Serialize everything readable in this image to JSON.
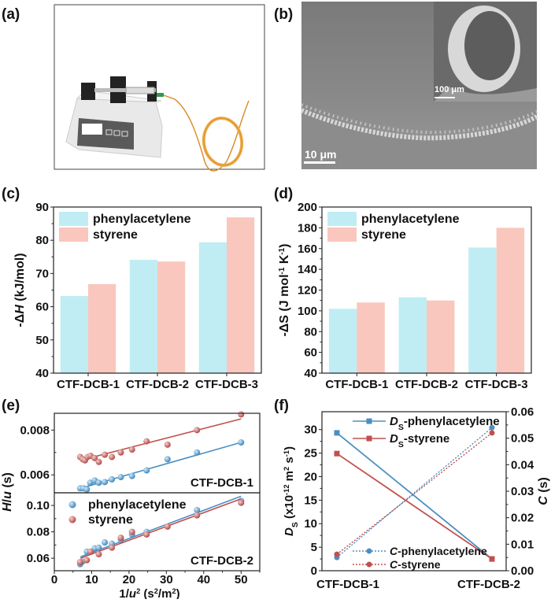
{
  "panels": {
    "a": {
      "label": "(a)"
    },
    "b": {
      "label": "(b)",
      "scale_main": "10 μm",
      "scale_inset": "100 μm"
    },
    "c": {
      "label": "(c)"
    },
    "d": {
      "label": "(d)"
    },
    "e": {
      "label": "(e)"
    },
    "f": {
      "label": "(f)"
    }
  },
  "colors": {
    "phenylacetylene_bar": "#bfedf3",
    "styrene_bar": "#f9c7bd",
    "phenylacetylene": "#4a8fc2",
    "styrene": "#c0504d"
  },
  "chart_data": [
    {
      "panel": "c",
      "type": "bar",
      "categories": [
        "CTF-DCB-1",
        "CTF-DCB-2",
        "CTF-DCB-3"
      ],
      "series": [
        {
          "name": "phenylacetylene",
          "values": [
            63.2,
            74.1,
            79.4
          ]
        },
        {
          "name": "styrene",
          "values": [
            66.8,
            73.6,
            86.9
          ]
        }
      ],
      "ylabel": [
        {
          "t": "-Δ"
        },
        {
          "t": "H",
          "i": true
        },
        {
          "t": " (kJ/mol)"
        }
      ],
      "ylim": [
        40,
        90
      ],
      "yticks": [
        40,
        50,
        60,
        70,
        80,
        90
      ],
      "legend": "top-left",
      "grid": false
    },
    {
      "panel": "d",
      "type": "bar",
      "categories": [
        "CTF-DCB-1",
        "CTF-DCB-2",
        "CTF-DCB-3"
      ],
      "series": [
        {
          "name": "phenylacetylene",
          "values": [
            102,
            113,
            161
          ]
        },
        {
          "name": "styrene",
          "values": [
            108,
            110,
            180
          ]
        }
      ],
      "ylabel": [
        {
          "t": "-ΔS (J mol"
        },
        {
          "t": "-1",
          "sup": true
        },
        {
          "t": " K"
        },
        {
          "t": "-1",
          "sup": true
        },
        {
          "t": ")"
        }
      ],
      "ylim": [
        40,
        200
      ],
      "yticks": [
        40,
        60,
        80,
        100,
        120,
        140,
        160,
        180,
        200
      ],
      "legend": "top-left",
      "grid": false
    },
    {
      "panel": "e",
      "type": "scatter",
      "xlabel": [
        {
          "t": "1/"
        },
        {
          "t": "u",
          "i": true
        },
        {
          "t": "2",
          "sup": true
        },
        {
          "t": "  (s"
        },
        {
          "t": "2",
          "sup": true
        },
        {
          "t": "/m"
        },
        {
          "t": "2",
          "sup": true
        },
        {
          "t": ")"
        }
      ],
      "ylabel": [
        {
          "t": "H",
          "i": true
        },
        {
          "t": "/"
        },
        {
          "t": "u",
          "i": true
        },
        {
          "t": " (s)"
        }
      ],
      "xlim": [
        0,
        55
      ],
      "xticks": [
        0,
        10,
        20,
        30,
        40,
        50
      ],
      "legend": "inside bottom subplot, top-left",
      "subplots": [
        {
          "title": "CTF-DCB-1",
          "ylim": [
            0.0052,
            0.00875
          ],
          "yticks": [
            "0.006",
            "0.008"
          ],
          "series": [
            {
              "name": "phenylacetylene",
              "x": [
                6.9,
                7.8,
                8.7,
                9.6,
                10.8,
                11.9,
                13.5,
                15.4,
                17.8,
                20.8,
                24.7,
                30.3,
                38.2,
                50
              ],
              "y": [
                0.0054,
                0.0054,
                0.00535,
                0.00565,
                0.00575,
                0.00565,
                0.00568,
                0.0058,
                0.0059,
                0.00595,
                0.0062,
                0.0067,
                0.007,
                0.00745
              ],
              "fit": [
                [
                  7,
                  0.0054
                ],
                [
                  50,
                  0.00745
                ]
              ]
            },
            {
              "name": "styrene",
              "x": [
                6.9,
                7.6,
                8.2,
                8.9,
                9.7,
                10.8,
                11.9,
                13.5,
                15.4,
                17.8,
                20.8,
                24.7,
                30.3,
                38.2,
                50
              ],
              "y": [
                0.0068,
                0.0067,
                0.00665,
                0.0068,
                0.00685,
                0.00675,
                0.00658,
                0.0069,
                0.0068,
                0.007,
                0.00713,
                0.0075,
                0.00735,
                0.008,
                0.0087
              ],
              "fit": [
                [
                  7,
                  0.00665
                ],
                [
                  50,
                  0.0085
                ]
              ]
            }
          ]
        },
        {
          "title": "CTF-DCB-2",
          "ylim": [
            0.0505,
            0.1096
          ],
          "yticks": [
            "0.06",
            "0.08",
            "0.10"
          ],
          "series": [
            {
              "name": "phenylacetylene",
              "x": [
                6.9,
                7.5,
                8.7,
                10.8,
                11.9,
                13.5,
                15.4,
                17.8,
                20.8,
                24.7,
                38.2,
                50
              ],
              "y": [
                0.0555,
                0.0575,
                0.065,
                0.0675,
                0.068,
                0.072,
                0.071,
                0.074,
                0.078,
                0.08,
                0.0965,
                0.1035
              ],
              "fit": [
                [
                  7,
                  0.061
                ],
                [
                  50,
                  0.107
                ]
              ]
            },
            {
              "name": "styrene",
              "x": [
                6.9,
                8.7,
                9.7,
                11.9,
                15.4,
                17.8,
                20.8,
                24.7,
                30.3,
                38.2,
                50
              ],
              "y": [
                0.057,
                0.0585,
                0.065,
                0.063,
                0.068,
                0.0755,
                0.08,
                0.078,
                0.084,
                0.0925,
                0.102
              ],
              "fit": [
                [
                  7,
                  0.06
                ],
                [
                  50,
                  0.105
                ]
              ]
            }
          ]
        }
      ]
    },
    {
      "panel": "f",
      "type": "line",
      "categories": [
        "CTF-DCB-1",
        "CTF-DCB-2"
      ],
      "ylabel": [
        {
          "t": "D",
          "i": true
        },
        {
          "t": "S",
          "sub": true
        },
        {
          "t": " (x10"
        },
        {
          "t": "-12",
          "sup": true
        },
        {
          "t": " m"
        },
        {
          "t": "2",
          "sup": true
        },
        {
          "t": " s"
        },
        {
          "t": "-1",
          "sup": true
        },
        {
          "t": ")"
        }
      ],
      "y2label": [
        {
          "t": "C",
          "i": true
        },
        {
          "t": " (s)"
        }
      ],
      "ylim": [
        0,
        33.8
      ],
      "yticks": [
        0,
        5,
        10,
        15,
        20,
        25,
        30
      ],
      "y2lim": [
        0,
        0.06
      ],
      "y2ticks": [
        "0.00",
        "0.01",
        "0.02",
        "0.03",
        "0.04",
        "0.05",
        "0.06"
      ],
      "series": [
        {
          "name": [
            {
              "t": "D",
              "i": true
            },
            {
              "t": "S",
              "sub": true
            },
            {
              "t": "-phenylacetylene"
            }
          ],
          "axis": "left",
          "style": "solid-square",
          "color": "phenylacetylene",
          "values": [
            29.3,
            2.5
          ]
        },
        {
          "name": [
            {
              "t": "D",
              "i": true
            },
            {
              "t": "S",
              "sub": true
            },
            {
              "t": "-styrene"
            }
          ],
          "axis": "left",
          "style": "solid-square",
          "color": "styrene",
          "values": [
            24.9,
            2.5
          ]
        },
        {
          "name": [
            {
              "t": "C",
              "i": true
            },
            {
              "t": "-phenylacetylene"
            }
          ],
          "axis": "right",
          "style": "dotted-circle",
          "color": "phenylacetylene",
          "values": [
            0.005,
            0.054
          ]
        },
        {
          "name": [
            {
              "t": "C",
              "i": true
            },
            {
              "t": "-styrene"
            }
          ],
          "axis": "right",
          "style": "dotted-circle",
          "color": "styrene",
          "values": [
            0.0062,
            0.052
          ]
        }
      ]
    }
  ]
}
